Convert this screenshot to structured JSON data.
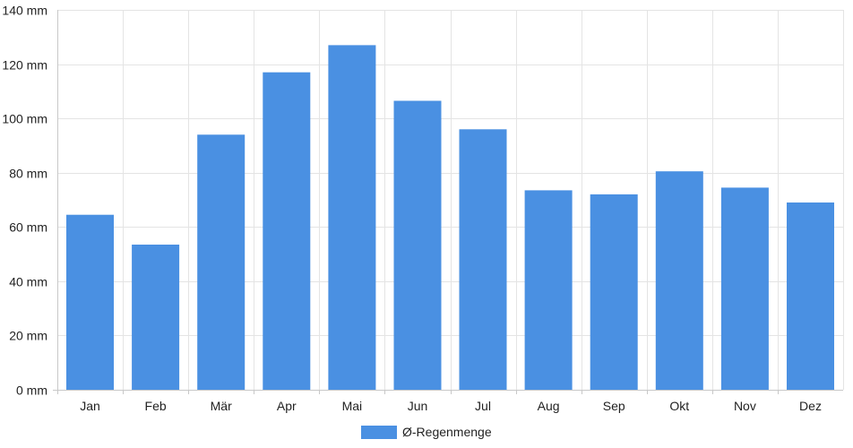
{
  "chart_data": {
    "type": "bar",
    "categories": [
      "Jan",
      "Feb",
      "Mär",
      "Apr",
      "Mai",
      "Jun",
      "Jul",
      "Aug",
      "Sep",
      "Okt",
      "Nov",
      "Dez"
    ],
    "series": [
      {
        "name": "Ø-Regenmenge",
        "values": [
          64.5,
          53.5,
          94,
          117,
          127,
          106.5,
          96,
          73.5,
          72,
          80.5,
          74.5,
          69
        ],
        "color": "#4a90e2"
      }
    ],
    "y_ticks": [
      0,
      20,
      40,
      60,
      80,
      100,
      120,
      140
    ],
    "y_tick_suffix": " mm",
    "ylim": [
      0,
      140
    ],
    "grid": true,
    "legend_position": "bottom-center",
    "title": "",
    "xlabel": "",
    "ylabel": ""
  }
}
